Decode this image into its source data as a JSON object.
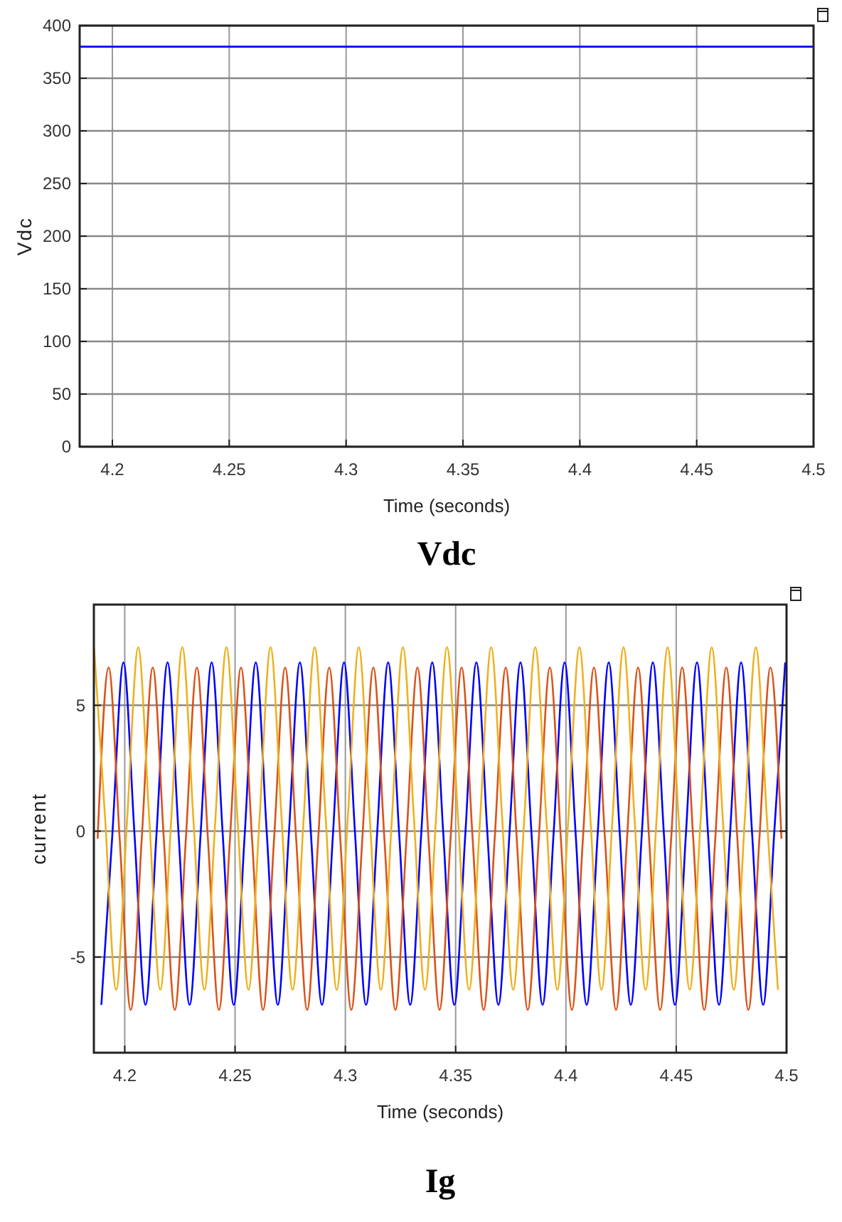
{
  "chart_data": [
    {
      "type": "line",
      "title": "Vdc",
      "xlabel": "Time (seconds)",
      "ylabel": "Vdc",
      "xlim": [
        4.186,
        4.5
      ],
      "ylim": [
        0,
        400
      ],
      "xticks": [
        4.2,
        4.25,
        4.3,
        4.35,
        4.4,
        4.45,
        4.5
      ],
      "yticks": [
        0,
        50,
        100,
        150,
        200,
        250,
        300,
        350,
        400
      ],
      "grid": true,
      "line_style": "solid",
      "marker": "none",
      "x": [
        4.186,
        4.5
      ],
      "series": [
        {
          "color": "#0000ff",
          "values": [
            380,
            380
          ]
        }
      ]
    },
    {
      "type": "line",
      "title": "Ig",
      "xlabel": "Time (seconds)",
      "ylabel": "current",
      "xlim": [
        4.186,
        4.5
      ],
      "ylim": [
        -8.8,
        9
      ],
      "xticks": [
        4.2,
        4.25,
        4.3,
        4.35,
        4.4,
        4.45,
        4.5
      ],
      "yticks": [
        -5,
        0,
        5
      ],
      "grid": true,
      "line_style": "solid",
      "marker": "none",
      "series": [
        {
          "color": "#0000ff",
          "x": [
            4.1894,
            4.1944,
            4.1994,
            4.2044,
            4.2094,
            4.2144,
            4.2194,
            4.2244,
            4.2294,
            4.2344,
            4.2394,
            4.2444,
            4.2494,
            4.2544,
            4.2594,
            4.2644,
            4.2694,
            4.2744,
            4.2794,
            4.2844,
            4.2894,
            4.2944,
            4.2994,
            4.3044,
            4.3094,
            4.3144,
            4.3194,
            4.3244,
            4.3294,
            4.3344,
            4.3394,
            4.3444,
            4.3494,
            4.3544,
            4.3594,
            4.3644,
            4.3694,
            4.3744,
            4.3794,
            4.3844,
            4.3894,
            4.3944,
            4.3994,
            4.4044,
            4.4094,
            4.4144,
            4.4194,
            4.4244,
            4.4294,
            4.4344,
            4.4394,
            4.4444,
            4.4494,
            4.4544,
            4.4594,
            4.4644,
            4.4694,
            4.4744,
            4.4794,
            4.4844,
            4.4894,
            4.4944,
            4.4994
          ],
          "values": [
            -6.9,
            -0.1,
            6.7,
            -0.1,
            -6.9,
            -0.1,
            6.7,
            -0.1,
            -6.9,
            -0.1,
            6.7,
            -0.1,
            -6.9,
            -0.1,
            6.7,
            -0.1,
            -6.9,
            -0.1,
            6.7,
            -0.1,
            -6.9,
            -0.1,
            6.7,
            -0.1,
            -6.9,
            -0.1,
            6.7,
            -0.1,
            -6.9,
            -0.1,
            6.7,
            -0.1,
            -6.9,
            -0.1,
            6.7,
            -0.1,
            -6.9,
            -0.1,
            6.7,
            -0.1,
            -6.9,
            -0.1,
            6.7,
            -0.1,
            -6.9,
            -0.1,
            6.7,
            -0.1,
            -6.9,
            -0.1,
            6.7,
            -0.1,
            -6.9,
            -0.1,
            6.7,
            -0.1,
            -6.9,
            -0.1,
            6.7,
            -0.1,
            -6.9,
            -0.1,
            6.7
          ]
        },
        {
          "color": "#d95319",
          "x": [
            4.1877,
            4.1927,
            4.1977,
            4.2027,
            4.2077,
            4.2127,
            4.2177,
            4.2227,
            4.2277,
            4.2327,
            4.2377,
            4.2427,
            4.2477,
            4.2527,
            4.2577,
            4.2627,
            4.2677,
            4.2727,
            4.2777,
            4.2827,
            4.2877,
            4.2927,
            4.2977,
            4.3027,
            4.3077,
            4.3127,
            4.3177,
            4.3227,
            4.3277,
            4.3327,
            4.3377,
            4.3427,
            4.3477,
            4.3527,
            4.3577,
            4.3627,
            4.3677,
            4.3727,
            4.3777,
            4.3827,
            4.3877,
            4.3927,
            4.3977,
            4.4027,
            4.4077,
            4.4127,
            4.4177,
            4.4227,
            4.4277,
            4.4327,
            4.4377,
            4.4427,
            4.4477,
            4.4527,
            4.4577,
            4.4627,
            4.4677,
            4.4727,
            4.4777,
            4.4827,
            4.4877,
            4.4927,
            4.4977
          ],
          "values": [
            -0.3,
            6.5,
            -0.3,
            -7.1,
            -0.3,
            6.5,
            -0.3,
            -7.1,
            -0.3,
            6.5,
            -0.3,
            -7.1,
            -0.3,
            6.5,
            -0.3,
            -7.1,
            -0.3,
            6.5,
            -0.3,
            -7.1,
            -0.3,
            6.5,
            -0.3,
            -7.1,
            -0.3,
            6.5,
            -0.3,
            -7.1,
            -0.3,
            6.5,
            -0.3,
            -7.1,
            -0.3,
            6.5,
            -0.3,
            -7.1,
            -0.3,
            6.5,
            -0.3,
            -7.1,
            -0.3,
            6.5,
            -0.3,
            -7.1,
            -0.3,
            6.5,
            -0.3,
            -7.1,
            -0.3,
            6.5,
            -0.3,
            -7.1,
            -0.3,
            6.5,
            -0.3,
            -7.1,
            -0.3,
            6.5,
            -0.3,
            -7.1,
            -0.3,
            6.5,
            -0.3
          ]
        },
        {
          "color": "#edb120",
          "x": [
            4.1861,
            4.1911,
            4.1961,
            4.2011,
            4.2061,
            4.2111,
            4.2161,
            4.2211,
            4.2261,
            4.2311,
            4.2361,
            4.2411,
            4.2461,
            4.2511,
            4.2561,
            4.2611,
            4.2661,
            4.2711,
            4.2761,
            4.2811,
            4.2861,
            4.2911,
            4.2961,
            4.3011,
            4.3061,
            4.3111,
            4.3161,
            4.3211,
            4.3261,
            4.3311,
            4.3361,
            4.3411,
            4.3461,
            4.3511,
            4.3561,
            4.3611,
            4.3661,
            4.3711,
            4.3761,
            4.3811,
            4.3861,
            4.3911,
            4.3961,
            4.4011,
            4.4061,
            4.4111,
            4.4161,
            4.4211,
            4.4261,
            4.4311,
            4.4361,
            4.4411,
            4.4461,
            4.4511,
            4.4561,
            4.4611,
            4.4661,
            4.4711,
            4.4761,
            4.4811,
            4.4861,
            4.4911,
            4.4961
          ],
          "values": [
            7.3,
            0.5,
            -6.3,
            0.5,
            7.3,
            0.5,
            -6.3,
            0.5,
            7.3,
            0.5,
            -6.3,
            0.5,
            7.3,
            0.5,
            -6.3,
            0.5,
            7.3,
            0.5,
            -6.3,
            0.5,
            7.3,
            0.5,
            -6.3,
            0.5,
            7.3,
            0.5,
            -6.3,
            0.5,
            7.3,
            0.5,
            -6.3,
            0.5,
            7.3,
            0.5,
            -6.3,
            0.5,
            7.3,
            0.5,
            -6.3,
            0.5,
            7.3,
            0.5,
            -6.3,
            0.5,
            7.3,
            0.5,
            -6.3,
            0.5,
            7.3,
            0.5,
            -6.3,
            0.5,
            7.3,
            0.5,
            -6.3,
            0.5,
            7.3,
            0.5,
            -6.3,
            0.5,
            7.3,
            0.5,
            -6.3
          ]
        }
      ]
    }
  ]
}
